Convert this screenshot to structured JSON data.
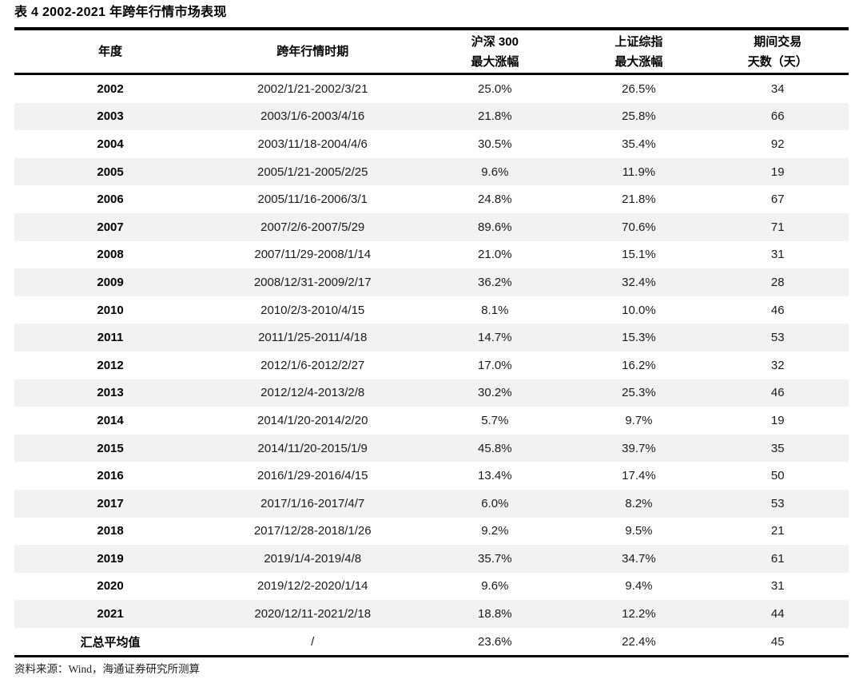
{
  "title": "表 4 2002-2021 年跨年行情市场表现",
  "footer": "资料来源：Wind，海通证券研究所测算",
  "table": {
    "columns": [
      {
        "line1": "年度",
        "line2": ""
      },
      {
        "line1": "跨年行情时期",
        "line2": ""
      },
      {
        "line1": "沪深 300",
        "line2": "最大涨幅"
      },
      {
        "line1": "上证综指",
        "line2": "最大涨幅"
      },
      {
        "line1": "期间交易",
        "line2": "天数（天）"
      }
    ],
    "rows": [
      {
        "year": "2002",
        "period": "2002/1/21-2002/3/21",
        "hs300": "25.0%",
        "szzz": "26.5%",
        "days": "34"
      },
      {
        "year": "2003",
        "period": "2003/1/6-2003/4/16",
        "hs300": "21.8%",
        "szzz": "25.8%",
        "days": "66"
      },
      {
        "year": "2004",
        "period": "2003/11/18-2004/4/6",
        "hs300": "30.5%",
        "szzz": "35.4%",
        "days": "92"
      },
      {
        "year": "2005",
        "period": "2005/1/21-2005/2/25",
        "hs300": "9.6%",
        "szzz": "11.9%",
        "days": "19"
      },
      {
        "year": "2006",
        "period": "2005/11/16-2006/3/1",
        "hs300": "24.8%",
        "szzz": "21.8%",
        "days": "67"
      },
      {
        "year": "2007",
        "period": "2007/2/6-2007/5/29",
        "hs300": "89.6%",
        "szzz": "70.6%",
        "days": "71"
      },
      {
        "year": "2008",
        "period": "2007/11/29-2008/1/14",
        "hs300": "21.0%",
        "szzz": "15.1%",
        "days": "31"
      },
      {
        "year": "2009",
        "period": "2008/12/31-2009/2/17",
        "hs300": "36.2%",
        "szzz": "32.4%",
        "days": "28"
      },
      {
        "year": "2010",
        "period": "2010/2/3-2010/4/15",
        "hs300": "8.1%",
        "szzz": "10.0%",
        "days": "46"
      },
      {
        "year": "2011",
        "period": "2011/1/25-2011/4/18",
        "hs300": "14.7%",
        "szzz": "15.3%",
        "days": "53"
      },
      {
        "year": "2012",
        "period": "2012/1/6-2012/2/27",
        "hs300": "17.0%",
        "szzz": "16.2%",
        "days": "32"
      },
      {
        "year": "2013",
        "period": "2012/12/4-2013/2/8",
        "hs300": "30.2%",
        "szzz": "25.3%",
        "days": "46"
      },
      {
        "year": "2014",
        "period": "2014/1/20-2014/2/20",
        "hs300": "5.7%",
        "szzz": "9.7%",
        "days": "19"
      },
      {
        "year": "2015",
        "period": "2014/11/20-2015/1/9",
        "hs300": "45.8%",
        "szzz": "39.7%",
        "days": "35"
      },
      {
        "year": "2016",
        "period": "2016/1/29-2016/4/15",
        "hs300": "13.4%",
        "szzz": "17.4%",
        "days": "50"
      },
      {
        "year": "2017",
        "period": "2017/1/16-2017/4/7",
        "hs300": "6.0%",
        "szzz": "8.2%",
        "days": "53"
      },
      {
        "year": "2018",
        "period": "2017/12/28-2018/1/26",
        "hs300": "9.2%",
        "szzz": "9.5%",
        "days": "21"
      },
      {
        "year": "2019",
        "period": "2019/1/4-2019/4/8",
        "hs300": "35.7%",
        "szzz": "34.7%",
        "days": "61"
      },
      {
        "year": "2020",
        "period": "2019/12/2-2020/1/14",
        "hs300": "9.6%",
        "szzz": "9.4%",
        "days": "31"
      },
      {
        "year": "2021",
        "period": "2020/12/11-2021/2/18",
        "hs300": "18.8%",
        "szzz": "12.2%",
        "days": "44"
      }
    ],
    "summary": {
      "year": "汇总平均值",
      "period": "/",
      "hs300": "23.6%",
      "szzz": "22.4%",
      "days": "45"
    }
  }
}
